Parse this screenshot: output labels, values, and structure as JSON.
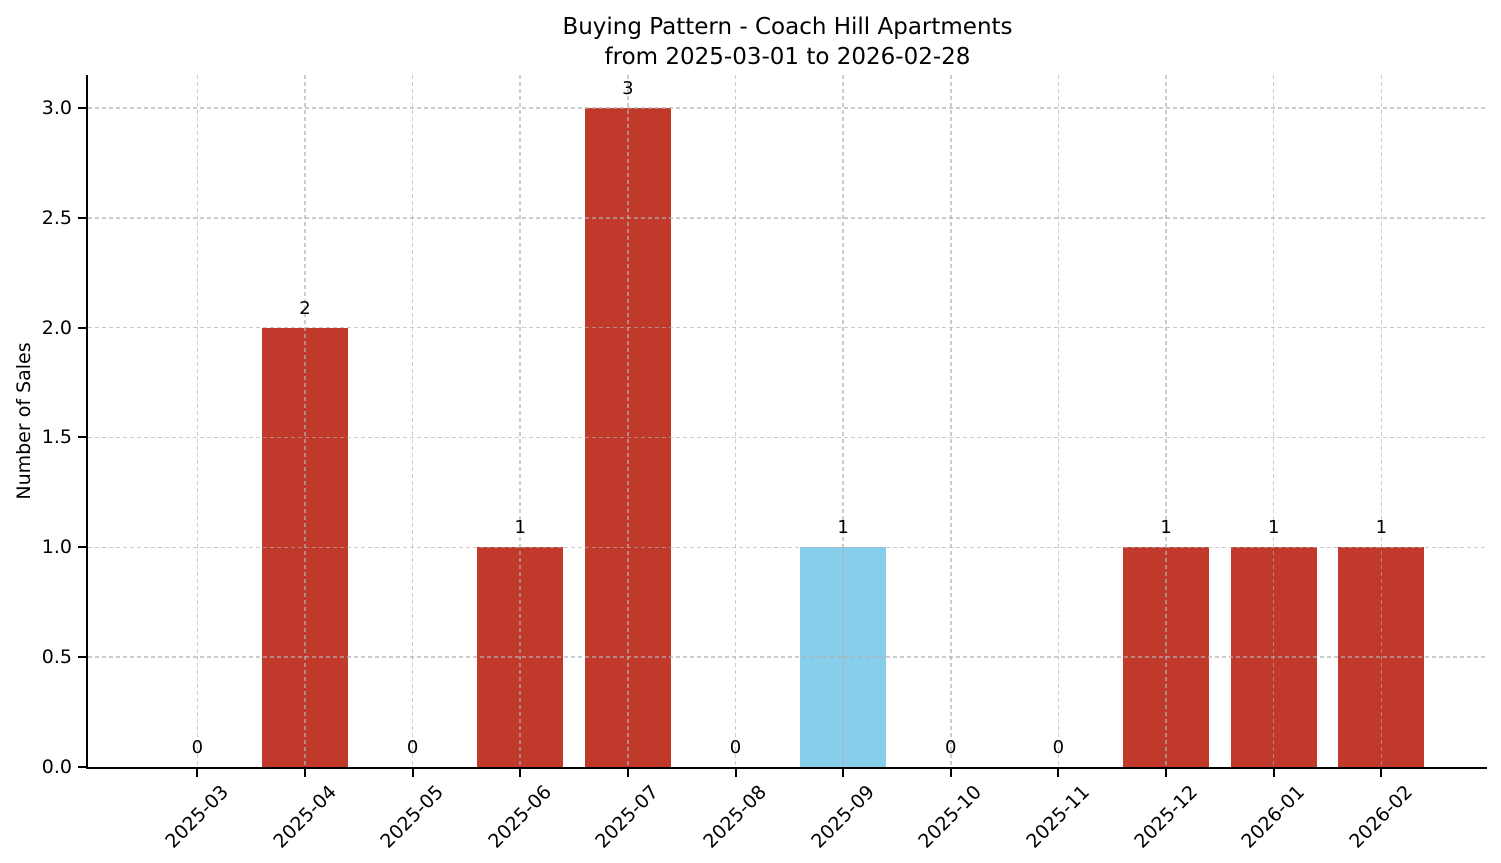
{
  "chart_data": {
    "type": "bar",
    "title": "Buying Pattern - Coach Hill Apartments",
    "subtitle": "from 2025-03-01 to 2026-02-28",
    "xlabel": "",
    "ylabel": "Number of Sales",
    "categories": [
      "2025-03",
      "2025-04",
      "2025-05",
      "2025-06",
      "2025-07",
      "2025-08",
      "2025-09",
      "2025-10",
      "2025-11",
      "2025-12",
      "2026-01",
      "2026-02"
    ],
    "values": [
      0,
      2,
      0,
      1,
      3,
      0,
      1,
      0,
      0,
      1,
      1,
      1
    ],
    "bar_value_labels": [
      "0",
      "2",
      "0",
      "1",
      "3",
      "0",
      "1",
      "0",
      "0",
      "1",
      "1",
      "1"
    ],
    "bar_colors": [
      "#c0392b",
      "#c0392b",
      "#c0392b",
      "#c0392b",
      "#c0392b",
      "#c0392b",
      "#87ceeb",
      "#c0392b",
      "#c0392b",
      "#c0392b",
      "#c0392b",
      "#c0392b"
    ],
    "colors": {
      "bar_default": "#c0392b",
      "bar_highlight": "#87ceeb",
      "grid": "#b0b0b0",
      "axis": "#000000",
      "text": "#000000"
    },
    "highlight_category": "2025-09",
    "y_ticks": [
      "0.0",
      "0.5",
      "1.0",
      "1.5",
      "2.0",
      "2.5",
      "3.0"
    ],
    "y_tick_values": [
      0,
      0.5,
      1,
      1.5,
      2,
      2.5,
      3
    ],
    "ylim": [
      0,
      3.15
    ],
    "grid": "dashed",
    "grid_over_bars": true,
    "x_label_rotation_deg": 45,
    "legend": null
  }
}
